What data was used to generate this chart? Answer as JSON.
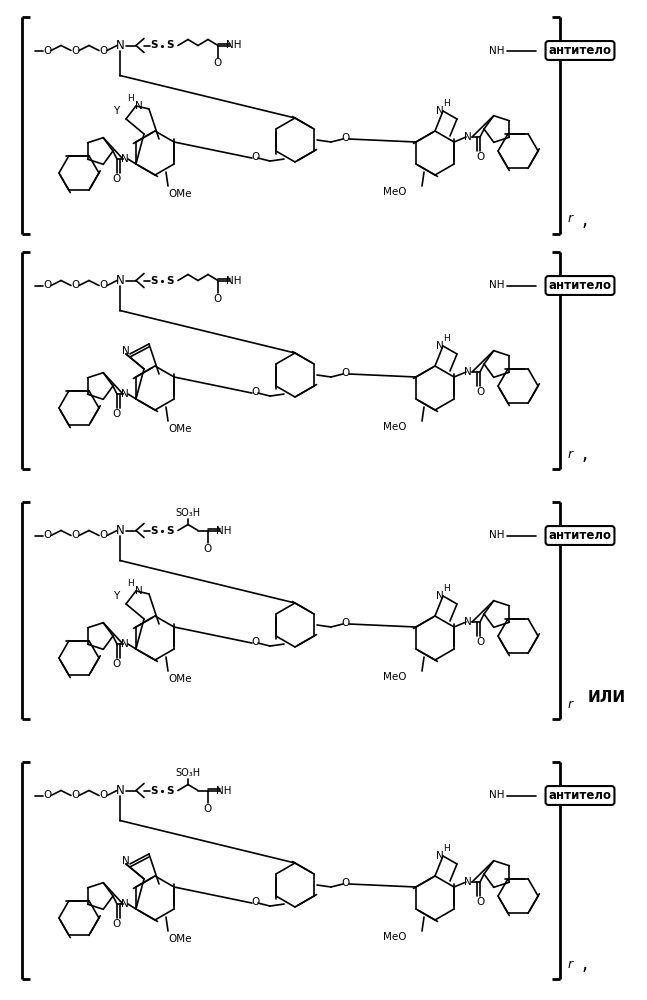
{
  "background_color": "#ffffff",
  "panels": [
    {
      "has_Y": true,
      "has_SO3H": false,
      "has_imine": false,
      "suffix": ",",
      "ili": ""
    },
    {
      "has_Y": false,
      "has_SO3H": false,
      "has_imine": true,
      "suffix": ",",
      "ili": ""
    },
    {
      "has_Y": true,
      "has_SO3H": true,
      "has_imine": false,
      "suffix": "",
      "ili": "ИЛИ"
    },
    {
      "has_Y": false,
      "has_SO3H": true,
      "has_imine": true,
      "suffix": ",",
      "ili": ""
    }
  ],
  "antibody_label": "антитело",
  "r_label": "r"
}
